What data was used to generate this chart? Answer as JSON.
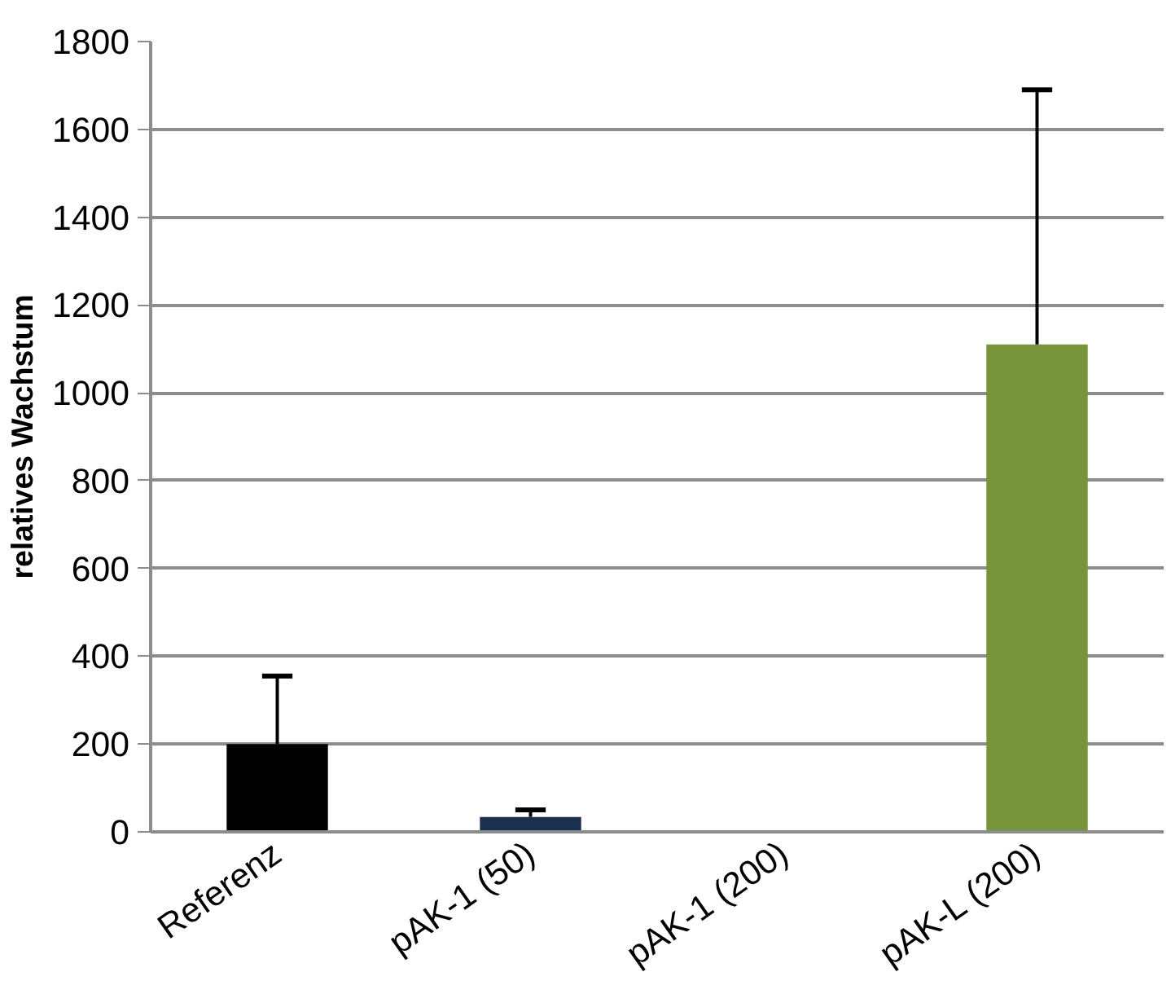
{
  "chart_data": {
    "type": "bar",
    "ylabel": "relatives Wachstum",
    "categories": [
      "Referenz",
      "pAK-1 (50)",
      "pAK-1 (200)",
      "pAK-L (200)"
    ],
    "values": [
      200,
      34,
      0,
      1110
    ],
    "colors": [
      "#000000",
      "#1b2f4e",
      "#4f81bd",
      "#77933c"
    ],
    "errors": [
      [
        200,
        355
      ],
      [
        34,
        50
      ],
      null,
      [
        1110,
        1690
      ]
    ],
    "ylim": [
      0,
      1800
    ],
    "yticks": [
      0,
      200,
      400,
      600,
      800,
      1000,
      1200,
      1400,
      1600,
      1800
    ],
    "grid": "y"
  }
}
